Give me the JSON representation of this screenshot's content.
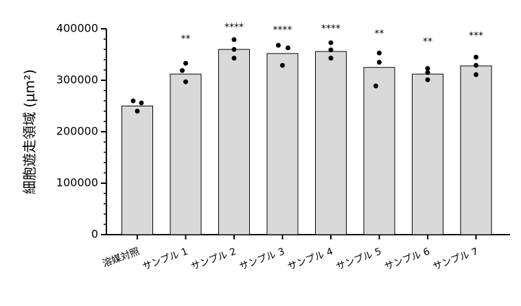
{
  "chart_data": {
    "type": "bar",
    "y_label": "細胞遊走領域 (µm²)",
    "categories": [
      "溶媒対照",
      "サンプル 1",
      "サンプル 2",
      "サンプル 3",
      "サンプル 4",
      "サンプル 5",
      "サンプル 6",
      "サンプル 7"
    ],
    "values": [
      250000,
      312000,
      360000,
      352000,
      356000,
      325000,
      312000,
      328000
    ],
    "points": [
      [
        260000,
        256000,
        240000
      ],
      [
        333000,
        319000,
        297000
      ],
      [
        379000,
        360000,
        343000
      ],
      [
        368000,
        363000,
        329000
      ],
      [
        373000,
        359000,
        343000
      ],
      [
        353000,
        335000,
        289000
      ],
      [
        323000,
        315000,
        301000
      ],
      [
        345000,
        329000,
        311000
      ]
    ],
    "annotations": [
      null,
      "**",
      "****",
      "****",
      "****",
      "**",
      "**",
      "***"
    ],
    "color": "#d9d9d9",
    "point_color": "#000000",
    "ylim": [
      0,
      400000
    ],
    "yticks": [
      0,
      100000,
      200000,
      300000,
      400000
    ],
    "yminorticks": [
      20000,
      40000,
      60000,
      80000,
      120000,
      140000,
      160000,
      180000,
      220000,
      240000,
      260000,
      280000,
      320000,
      340000,
      360000,
      380000
    ]
  }
}
